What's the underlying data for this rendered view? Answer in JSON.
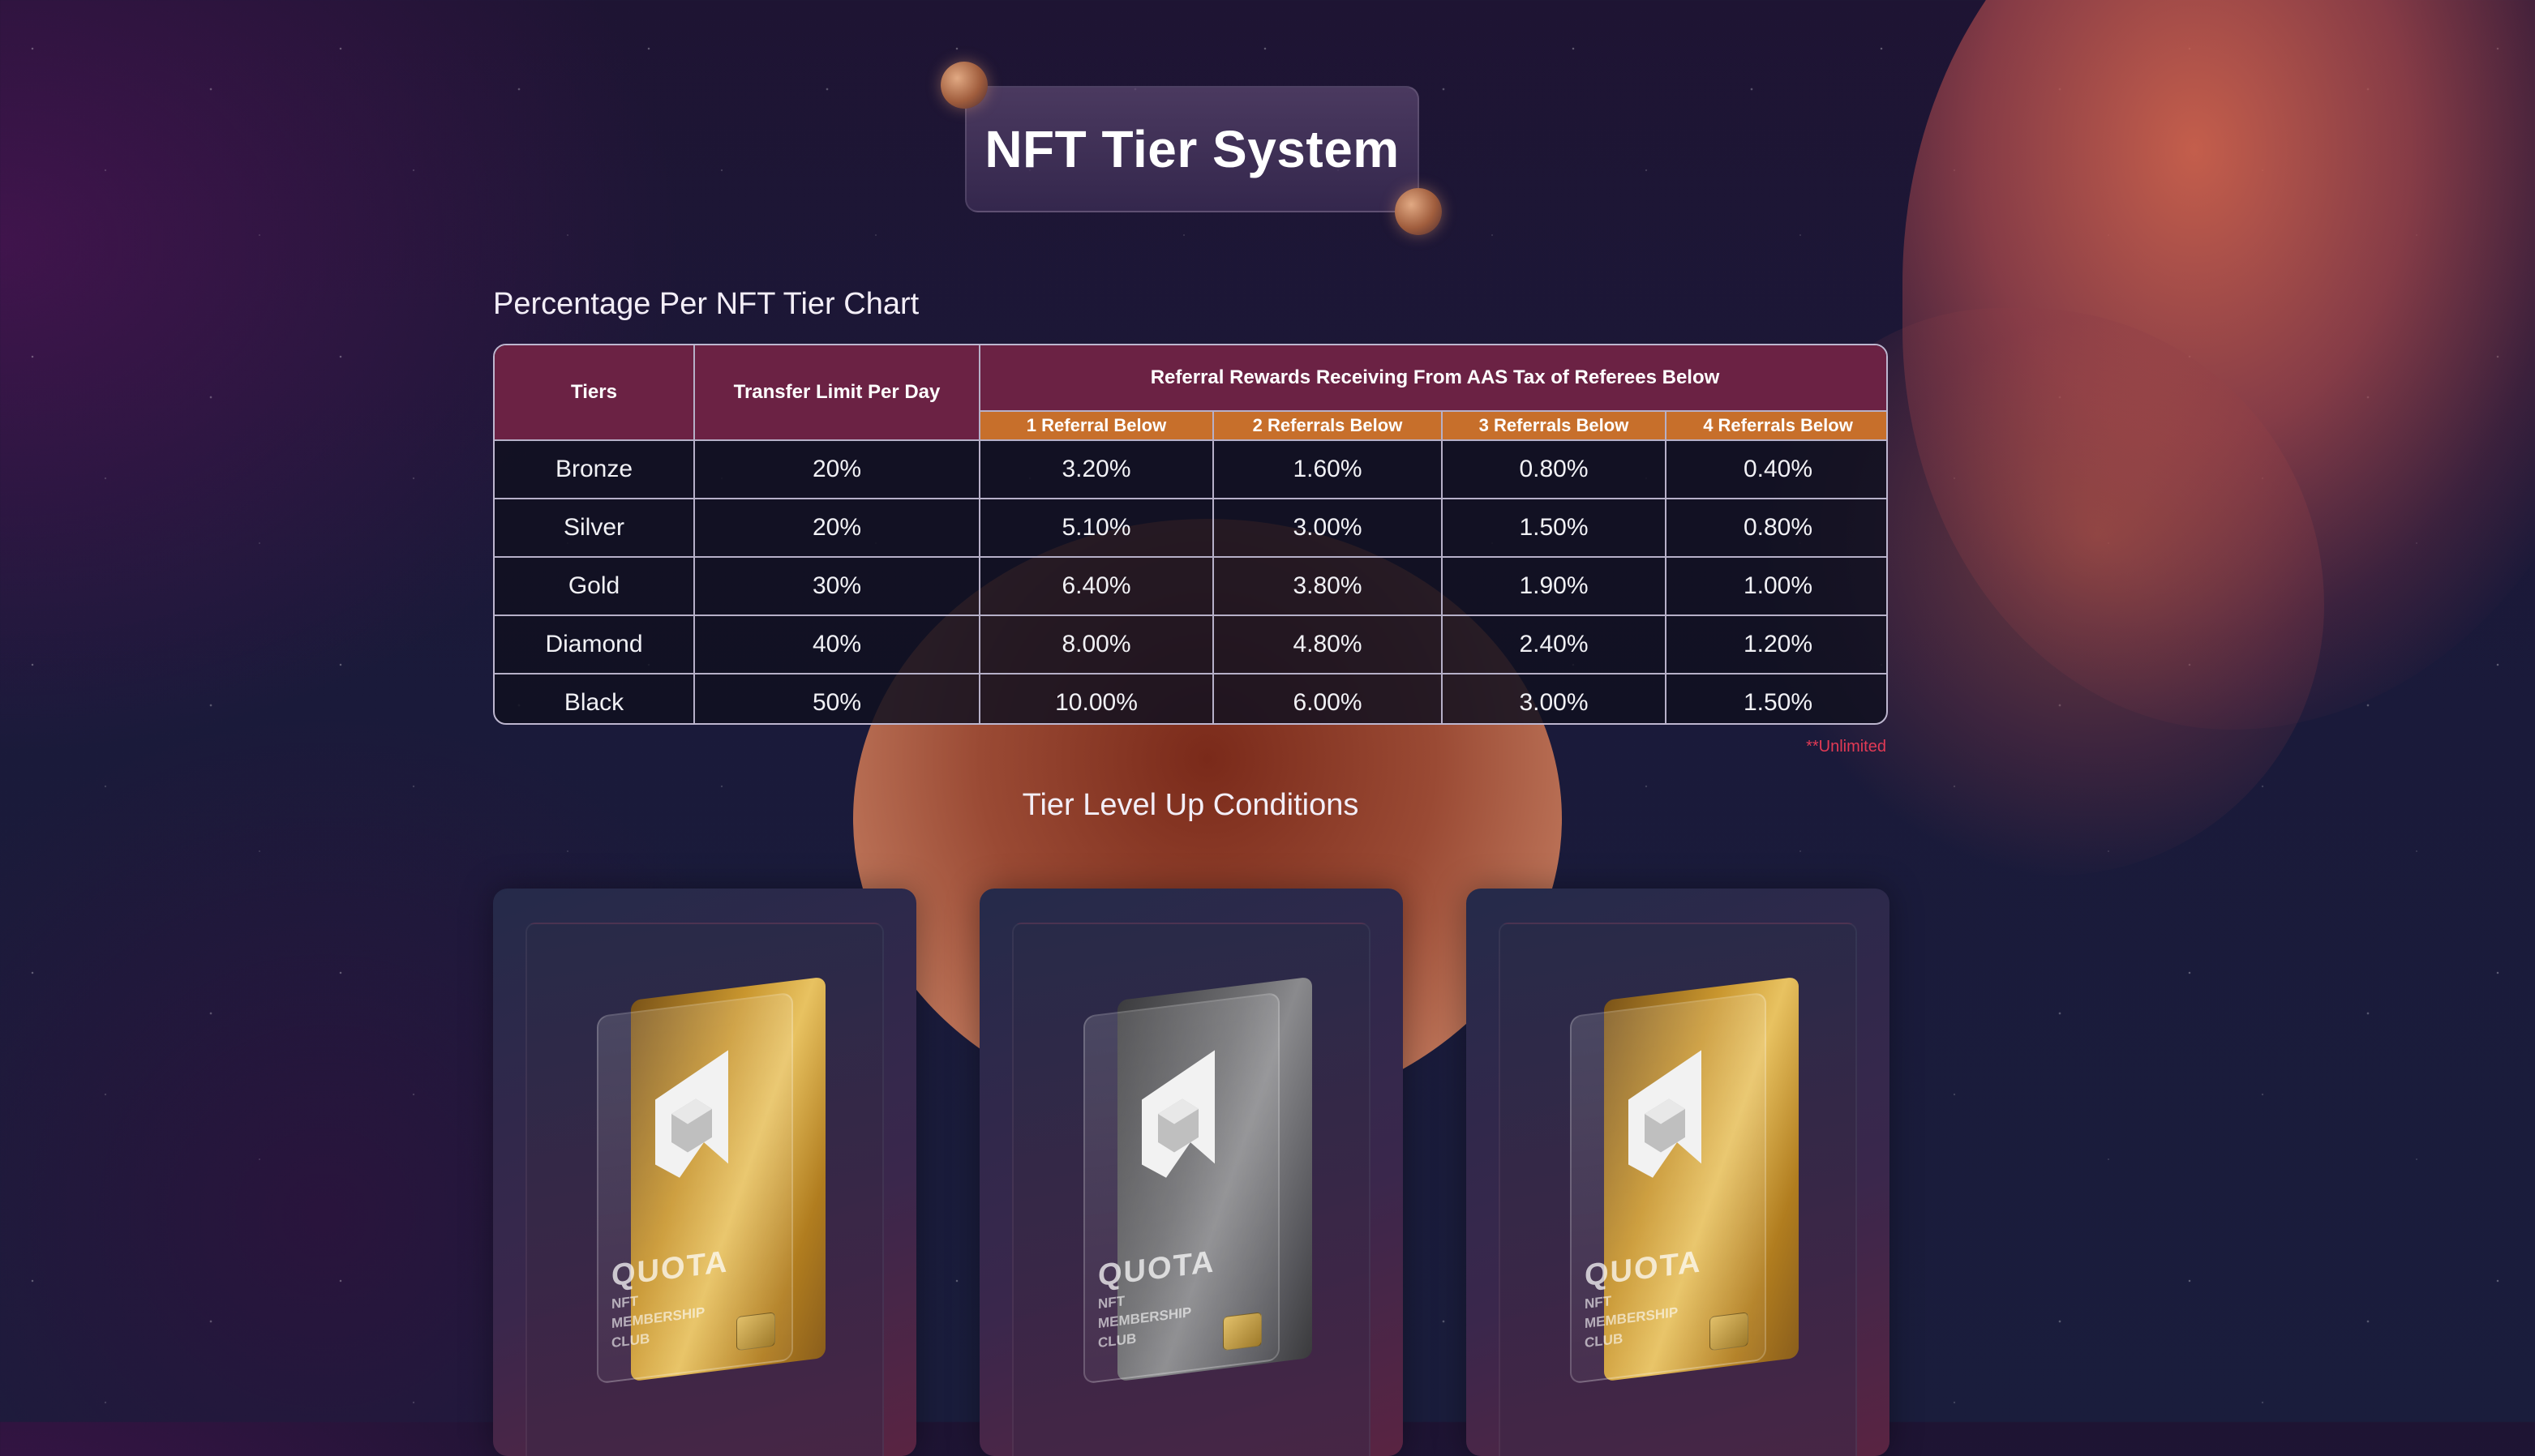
{
  "page": {
    "title": "NFT Tier System",
    "chart_heading": "Percentage Per NFT Tier Chart",
    "conditions_heading": "Tier Level Up Conditions",
    "footnote": "**Unlimited"
  },
  "table": {
    "col_tiers": "Tiers",
    "col_transfer": "Transfer Limit Per Day",
    "col_referral_group": "Referral Rewards Receiving From AAS Tax of Referees Below",
    "referral_cols": [
      "1 Referral Below",
      "2 Referrals Below",
      "3 Referrals Below",
      "4 Referrals Below"
    ],
    "rows": [
      {
        "tier": "Bronze",
        "transfer": "20%",
        "r1": "3.20%",
        "r2": "1.60%",
        "r3": "0.80%",
        "r4": "0.40%"
      },
      {
        "tier": "Silver",
        "transfer": "20%",
        "r1": "5.10%",
        "r2": "3.00%",
        "r3": "1.50%",
        "r4": "0.80%"
      },
      {
        "tier": "Gold",
        "transfer": "30%",
        "r1": "6.40%",
        "r2": "3.80%",
        "r3": "1.90%",
        "r4": "1.00%"
      },
      {
        "tier": "Diamond",
        "transfer": "40%",
        "r1": "8.00%",
        "r2": "4.80%",
        "r3": "2.40%",
        "r4": "1.20%"
      },
      {
        "tier": "Black",
        "transfer": "50%",
        "r1": "10.00%",
        "r2": "6.00%",
        "r3": "3.00%",
        "r4": "1.50%"
      }
    ]
  },
  "cards": [
    {
      "brand": "QUOTA",
      "line1": "NFT",
      "line2": "MEMBERSHIP",
      "line3": "CLUB",
      "finish": "gold"
    },
    {
      "brand": "QUOTA",
      "line1": "NFT",
      "line2": "MEMBERSHIP",
      "line3": "CLUB",
      "finish": "silver"
    },
    {
      "brand": "QUOTA",
      "line1": "NFT",
      "line2": "MEMBERSHIP",
      "line3": "CLUB",
      "finish": "gold"
    }
  ],
  "colors": {
    "header_maroon": "#6b2244",
    "subheader_orange": "#c76f2b",
    "footnote_red": "#e23a55"
  }
}
